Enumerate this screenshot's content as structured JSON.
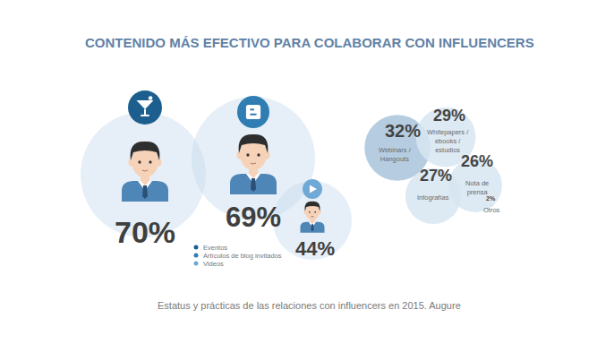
{
  "chart_data": [
    {
      "type": "bubble",
      "title": "CONTENIDO MÁS EFECTIVO PARA COLABORAR CON INFLUENCERS",
      "source": "Estatus y prácticas de las relaciones con influencers en 2015. Augure",
      "categories": [
        "Eventos",
        "Artículos de blog invitados",
        "Videos"
      ],
      "values": [
        70,
        69,
        44
      ],
      "value_labels": [
        "70%",
        "69%",
        "44%"
      ],
      "data_labels": true,
      "colors": [
        "#1c5f8f",
        "#2f7db3",
        "#6fa9d6"
      ],
      "legend": "bottom",
      "tick_labels": false
    },
    {
      "type": "bubble",
      "categories": [
        "Webinars /\nHangouts",
        "Whitepapers /\nebooks /\nestudios",
        "Infografías",
        "Nota de\nprensa",
        "Otros"
      ],
      "values": [
        32,
        29,
        27,
        26,
        2
      ],
      "value_labels": [
        "32%",
        "29%",
        "27%",
        "26%",
        "2%"
      ],
      "data_labels": true,
      "colors": [
        "#a9c4dc",
        "#d7e5f1",
        "#d7e5f1",
        "#d7e5f1",
        "#d7e5f1"
      ],
      "tick_labels": false
    }
  ]
}
